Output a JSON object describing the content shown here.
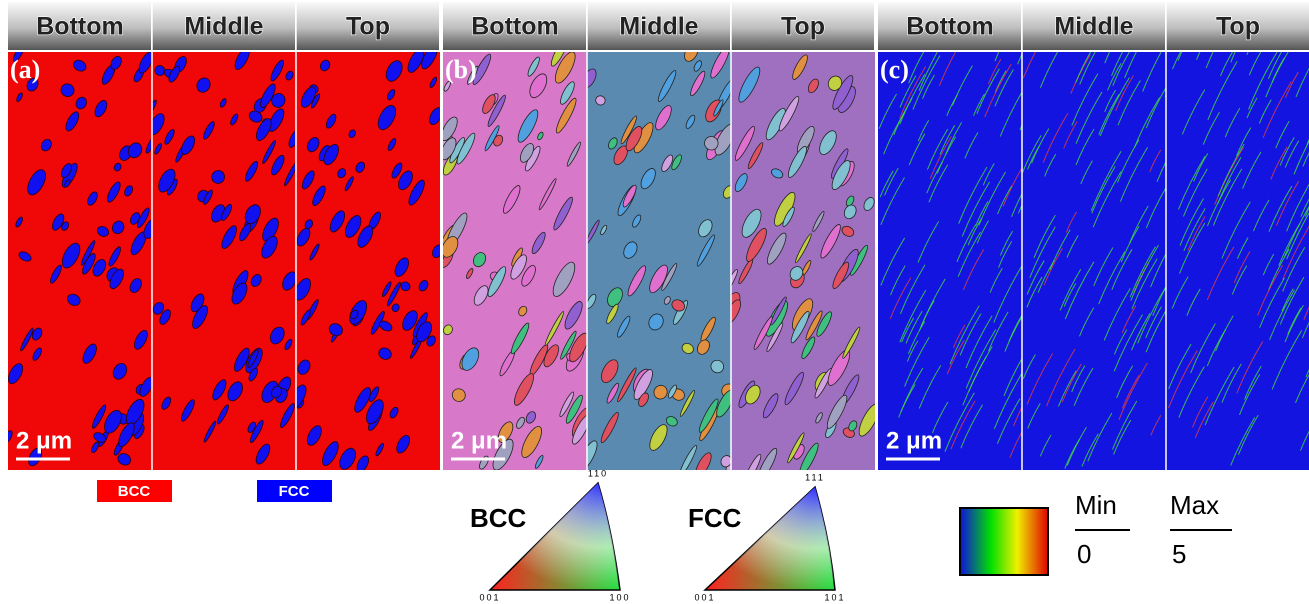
{
  "panels": [
    {
      "label": "(a)",
      "headers": [
        "Bottom",
        "Middle",
        "Top"
      ],
      "scale_bar": "2 μm"
    },
    {
      "label": "(b)",
      "headers": [
        "Bottom",
        "Middle",
        "Top"
      ],
      "scale_bar": "2 μm"
    },
    {
      "label": "(c)",
      "headers": [
        "Bottom",
        "Middle",
        "Top"
      ],
      "scale_bar": "2 μm"
    }
  ],
  "phase_legend": [
    "BCC",
    "FCC"
  ],
  "ipf_legend": [
    {
      "phase": "BCC",
      "corners": [
        "110",
        "001",
        "100"
      ]
    },
    {
      "phase": "FCC",
      "corners": [
        "111",
        "001",
        "101"
      ]
    }
  ],
  "kam_legend": {
    "min_label": "Min",
    "max_label": "Max",
    "min": 0,
    "max": 5
  }
}
